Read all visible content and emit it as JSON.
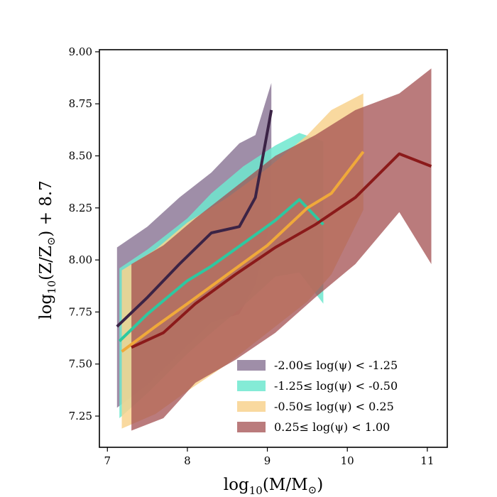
{
  "chart_data": {
    "type": "line",
    "title": "",
    "xlabel_main": "log",
    "xlabel_sub": "10",
    "xlabel_rest": "(M/M",
    "xlabel_sym": "⊙",
    "xlabel_end": ")",
    "ylabel_main": "log",
    "ylabel_sub": "10",
    "ylabel_rest": "(Z/Z",
    "ylabel_sym": "⊙",
    "ylabel_end": ") + 8.7",
    "xlim": [
      6.9,
      11.25
    ],
    "ylim": [
      7.1,
      9.01
    ],
    "xticks": [
      7,
      8,
      9,
      10,
      11
    ],
    "xtick_labels": [
      "7",
      "8",
      "9",
      "10",
      "11"
    ],
    "yticks": [
      7.25,
      7.5,
      7.75,
      8.0,
      8.25,
      8.5,
      8.75,
      9.0
    ],
    "ytick_labels": [
      "7.25",
      "7.50",
      "7.75",
      "8.00",
      "8.25",
      "8.50",
      "8.75",
      "9.00"
    ],
    "legend_position": "lower-right",
    "series": [
      {
        "name": "-2.00≤ log(ψ) < -1.25",
        "line_color": "#3b2345",
        "fill_color": "#8e7a99",
        "fill_opacity": 0.85,
        "x": [
          7.12,
          7.5,
          7.9,
          8.3,
          8.65,
          8.85,
          9.05
        ],
        "y": [
          7.68,
          7.82,
          7.98,
          8.13,
          8.16,
          8.3,
          8.72
        ],
        "upper": [
          8.06,
          8.16,
          8.3,
          8.42,
          8.56,
          8.6,
          8.85
        ],
        "lower": [
          7.29,
          7.4,
          7.55,
          7.7,
          7.74,
          7.88,
          8.2
        ]
      },
      {
        "name": "-1.25≤ log(ψ) < -0.50",
        "line_color": "#2ec8a0",
        "fill_color": "#6ee8cf",
        "fill_opacity": 0.85,
        "x": [
          7.15,
          7.5,
          8.0,
          8.3,
          8.7,
          9.1,
          9.4,
          9.7
        ],
        "y": [
          7.61,
          7.74,
          7.9,
          7.97,
          8.08,
          8.19,
          8.29,
          8.17
        ],
        "upper": [
          7.96,
          8.05,
          8.2,
          8.32,
          8.45,
          8.55,
          8.61,
          8.57
        ],
        "lower": [
          7.24,
          7.36,
          7.55,
          7.65,
          7.78,
          7.92,
          7.94,
          7.79
        ]
      },
      {
        "name": "-0.50≤ log(ψ) < 0.25",
        "line_color": "#f0a93a",
        "fill_color": "#f8d28e",
        "fill_opacity": 0.85,
        "x": [
          7.18,
          7.6,
          8.0,
          8.5,
          9.0,
          9.5,
          9.8,
          10.2
        ],
        "y": [
          7.56,
          7.68,
          7.79,
          7.93,
          8.07,
          8.25,
          8.32,
          8.52
        ],
        "upper": [
          7.95,
          8.05,
          8.18,
          8.3,
          8.44,
          8.6,
          8.72,
          8.8
        ],
        "lower": [
          7.19,
          7.26,
          7.37,
          7.5,
          7.65,
          7.8,
          7.93,
          8.24
        ]
      },
      {
        "name": "0.25≤ log(ψ) < 1.00",
        "line_color": "#8b1a1a",
        "fill_color": "#a34f50",
        "fill_opacity": 0.75,
        "x": [
          7.3,
          7.7,
          8.1,
          8.6,
          9.1,
          9.6,
          10.1,
          10.65,
          11.05
        ],
        "y": [
          7.58,
          7.65,
          7.79,
          7.93,
          8.06,
          8.17,
          8.3,
          8.51,
          8.45
        ],
        "upper": [
          7.98,
          8.07,
          8.2,
          8.35,
          8.5,
          8.6,
          8.72,
          8.8,
          8.92
        ],
        "lower": [
          7.18,
          7.24,
          7.41,
          7.52,
          7.65,
          7.82,
          7.98,
          8.23,
          7.98
        ]
      }
    ]
  }
}
